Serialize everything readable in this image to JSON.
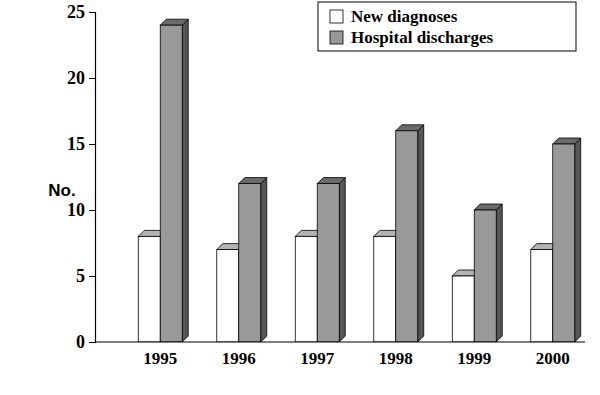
{
  "chart_data": {
    "type": "bar",
    "y_label": "No.",
    "categories": [
      "1995",
      "1996",
      "1997",
      "1998",
      "1999",
      "2000"
    ],
    "series": [
      {
        "name": "New diagnoses",
        "color": "#ffffff",
        "values": [
          8,
          7,
          8,
          8,
          5,
          7
        ]
      },
      {
        "name": "Hospital discharges",
        "color": "#999999",
        "values": [
          24,
          12,
          12,
          16,
          10,
          15
        ]
      }
    ],
    "ylim": [
      0,
      25
    ],
    "yticks": [
      0,
      5,
      10,
      15,
      20,
      25
    ],
    "grid": false,
    "legend": "upper right"
  }
}
